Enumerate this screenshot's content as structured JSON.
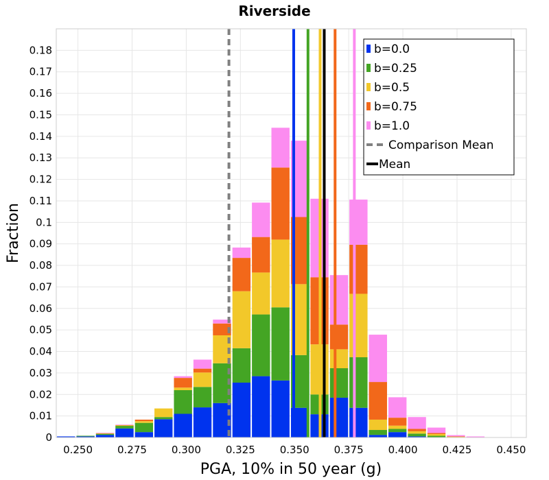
{
  "chart_data": {
    "type": "bar",
    "title": "Riverside",
    "xlabel": "PGA, 10% in 50 year (g)",
    "ylabel": "Fraction",
    "xlim": [
      0.24,
      0.457
    ],
    "ylim": [
      0,
      0.19
    ],
    "x_ticks": [
      "0.250",
      "0.275",
      "0.300",
      "0.325",
      "0.350",
      "0.375",
      "0.400",
      "0.425",
      "0.450"
    ],
    "y_ticks": [
      "0",
      "0.01",
      "0.02",
      "0.03",
      "0.04",
      "0.05",
      "0.06",
      "0.07",
      "0.08",
      "0.09",
      "0.1",
      "0.11",
      "0.12",
      "0.13",
      "0.14",
      "0.15",
      "0.16",
      "0.17",
      "0.18"
    ],
    "grid": true,
    "legend_position": "top-right",
    "bin_width": 0.009,
    "bin_centers": [
      0.2445,
      0.2535,
      0.2625,
      0.2715,
      0.2805,
      0.2895,
      0.2985,
      0.3075,
      0.3165,
      0.3255,
      0.3345,
      0.3435,
      0.3525,
      0.3615,
      0.3705,
      0.3795,
      0.3885,
      0.3975,
      0.4065,
      0.4155,
      0.4245,
      0.4335,
      0.4425,
      0.4515
    ],
    "series": [
      {
        "name": "b=0.0",
        "color": "#0033ee",
        "values": [
          0.0005,
          0.0005,
          0.0012,
          0.0042,
          0.0025,
          0.0085,
          0.011,
          0.014,
          0.016,
          0.0255,
          0.0285,
          0.0265,
          0.0138,
          0.0108,
          0.0185,
          0.0138,
          0.0012,
          0.0025,
          0.0005,
          0.0001,
          0.0001,
          0.0,
          0.0,
          0.0
        ]
      },
      {
        "name": "b=0.25",
        "color": "#44a524",
        "values": [
          0.0,
          0.0003,
          0.0005,
          0.0012,
          0.0043,
          0.001,
          0.011,
          0.0095,
          0.0185,
          0.016,
          0.0287,
          0.034,
          0.0245,
          0.0092,
          0.0137,
          0.0235,
          0.0023,
          0.0015,
          0.0013,
          0.0007,
          0.0001,
          0.0,
          0.0,
          0.0
        ]
      },
      {
        "name": "b=0.5",
        "color": "#f2c82a",
        "values": [
          0.0,
          0.0,
          0.0002,
          0.0003,
          0.0008,
          0.004,
          0.0012,
          0.0067,
          0.013,
          0.0265,
          0.0195,
          0.0315,
          0.033,
          0.0233,
          0.0088,
          0.0295,
          0.0048,
          0.0015,
          0.0011,
          0.0008,
          0.0001,
          0.0,
          0.0,
          0.0
        ]
      },
      {
        "name": "b=0.75",
        "color": "#f2681a",
        "values": [
          0.0,
          0.0,
          0.0001,
          0.0001,
          0.0007,
          0.0,
          0.0045,
          0.0018,
          0.0055,
          0.0155,
          0.0165,
          0.0335,
          0.0312,
          0.0312,
          0.0115,
          0.0228,
          0.0175,
          0.0037,
          0.0011,
          0.0005,
          0.0002,
          0.0,
          0.0,
          0.0
        ]
      },
      {
        "name": "b=1.0",
        "color": "#fc8cf0",
        "values": [
          0.0,
          0.0,
          0.0002,
          0.0002,
          0.0,
          0.0,
          0.0008,
          0.0042,
          0.0018,
          0.0048,
          0.016,
          0.0185,
          0.0355,
          0.0365,
          0.023,
          0.021,
          0.022,
          0.0095,
          0.0055,
          0.0025,
          0.0006,
          0.0005,
          0.0,
          0.0
        ]
      }
    ],
    "mean_lines": [
      {
        "name": "b=0.0",
        "x": 0.3496,
        "color": "#0033ee",
        "style": "solid"
      },
      {
        "name": "b=0.25",
        "x": 0.3562,
        "color": "#44a524",
        "style": "solid"
      },
      {
        "name": "b=0.5",
        "x": 0.3618,
        "color": "#f2c82a",
        "style": "solid"
      },
      {
        "name": "b=0.75",
        "x": 0.3687,
        "color": "#f2681a",
        "style": "solid"
      },
      {
        "name": "b=1.0",
        "x": 0.3776,
        "color": "#fc8cf0",
        "style": "solid"
      },
      {
        "name": "Comparison Mean",
        "x": 0.3197,
        "color": "#808080",
        "style": "dashed"
      },
      {
        "name": "Mean",
        "x": 0.3637,
        "color": "#000000",
        "style": "solid"
      }
    ],
    "legend": [
      {
        "label": "b=0.0",
        "color": "#0033ee",
        "kind": "box"
      },
      {
        "label": "b=0.25",
        "color": "#44a524",
        "kind": "box"
      },
      {
        "label": "b=0.5",
        "color": "#f2c82a",
        "kind": "box"
      },
      {
        "label": "b=0.75",
        "color": "#f2681a",
        "kind": "box"
      },
      {
        "label": "b=1.0",
        "color": "#fc8cf0",
        "kind": "box"
      },
      {
        "label": "Comparison Mean",
        "color": "#808080",
        "kind": "dashed"
      },
      {
        "label": "Mean",
        "color": "#000000",
        "kind": "line"
      }
    ]
  }
}
